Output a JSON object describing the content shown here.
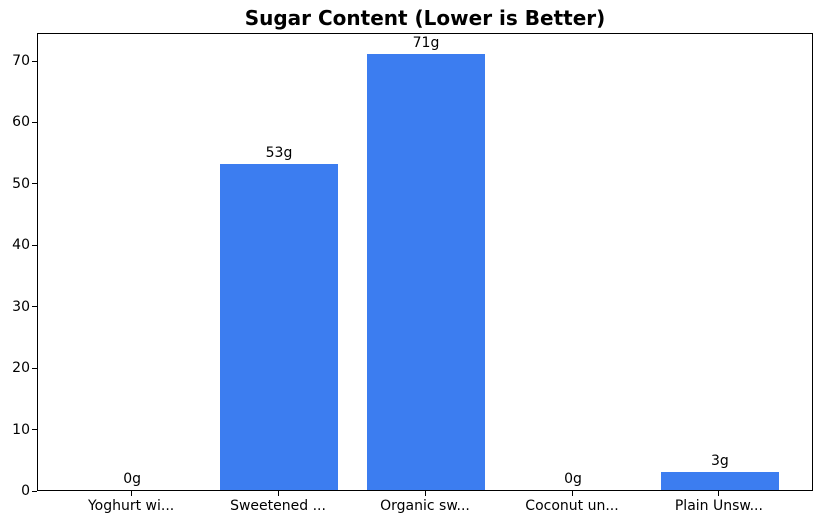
{
  "chart_data": {
    "type": "bar",
    "title": "Sugar Content (Lower is Better)",
    "categories": [
      "Yoghurt wi...",
      "Sweetened ...",
      "Organic sw...",
      "Coconut un...",
      "Plain Unsw..."
    ],
    "values": [
      0,
      53,
      71,
      0,
      3
    ],
    "value_labels": [
      "0g",
      "53g",
      "71g",
      "0g",
      "3g"
    ],
    "xlabel": "",
    "ylabel": "",
    "ylim": [
      0,
      74.55
    ],
    "yticks": [
      0,
      10,
      20,
      30,
      40,
      50,
      60,
      70
    ],
    "grid": false,
    "legend": null,
    "bar_color": "#3c7df0",
    "background_color": "#ffffff",
    "spine_color": "#000000",
    "bar_rel_width": 0.8,
    "x_edge_margin": 0.64
  }
}
